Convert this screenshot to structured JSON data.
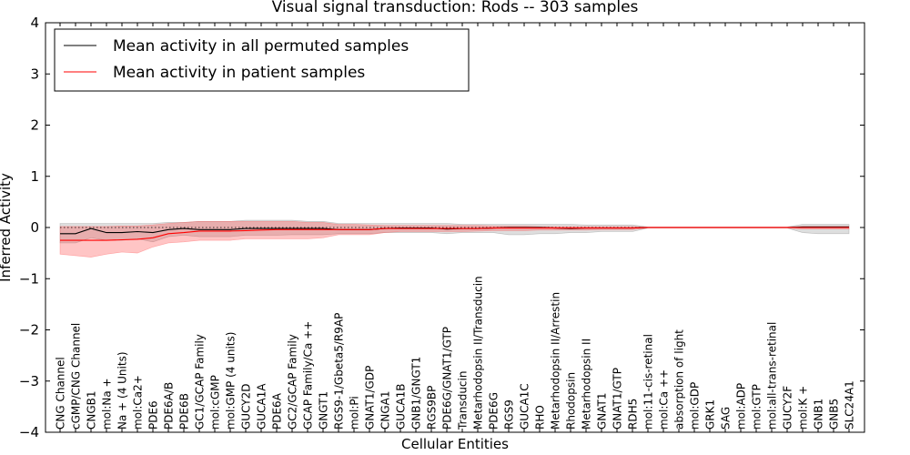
{
  "chart_data": {
    "type": "line",
    "title": "Visual signal transduction: Rods -- 303 samples",
    "xlabel": "Cellular Entities",
    "ylabel": "Inferred Activity",
    "ylim": [
      -4,
      4
    ],
    "yticks": [
      "4",
      "3",
      "2",
      "1",
      "0",
      "−1",
      "−2",
      "−3",
      "−4"
    ],
    "ytick_values": [
      4,
      3,
      2,
      1,
      0,
      -1,
      -2,
      -3,
      -4
    ],
    "legend_position": "top-left",
    "categories": [
      "CNG Channel",
      "cGMP/CNG Channel",
      "CNGB1",
      "mol:Na +",
      "Na + (4 Units)",
      "mol:Ca2+",
      "PDE6",
      "PDE6A/B",
      "PDE6B",
      "GC1/GCAP Family",
      "mol:cGMP",
      "mol:GMP (4 units)",
      "GUCY2D",
      "GUCA1A",
      "PDE6A",
      "GC2/GCAP Family",
      "GCAP Family/Ca ++",
      "GNGT1",
      "RGS9-1/Gbeta5/R9AP",
      "mol:Pi",
      "GNAT1/GDP",
      "CNGA1",
      "GUCA1B",
      "GNB1/GNGT1",
      "RGS9BP",
      "PDE6G/GNAT1/GTP",
      "Transducin",
      "Metarhodopsin II/Transducin",
      "PDE6G",
      "RGS9",
      "GUCA1C",
      "RHO",
      "Metarhodopsin II/Arrestin",
      "Rhodopsin",
      "Metarhodopsin II",
      "GNAT1",
      "GNAT1/GTP",
      "RDH5",
      "mol:11-cis-retinal",
      "mol:Ca ++",
      "absorption of light",
      "mol:GDP",
      "GRK1",
      "SAG",
      "mol:ADP",
      "mol:GTP",
      "mol:all-trans-retinal",
      "GUCY2F",
      "mol:K +",
      "GNB1",
      "GNB5",
      "SLC24A1"
    ],
    "series": [
      {
        "name": "Mean activity in all permuted samples",
        "color": "#000000",
        "values": [
          -0.12,
          -0.12,
          -0.02,
          -0.1,
          -0.1,
          -0.08,
          -0.1,
          -0.04,
          -0.02,
          -0.04,
          -0.04,
          -0.04,
          -0.02,
          -0.02,
          -0.02,
          -0.02,
          -0.02,
          -0.02,
          -0.04,
          -0.04,
          -0.04,
          -0.02,
          -0.01,
          -0.01,
          -0.01,
          -0.03,
          -0.02,
          -0.02,
          -0.01,
          0,
          0,
          0,
          -0.01,
          -0.02,
          -0.01,
          -0.01,
          -0.01,
          -0.01,
          0,
          0,
          0,
          0,
          0,
          0,
          0,
          0,
          0,
          0,
          0.01,
          0.01,
          0.01,
          0.01
        ],
        "upper": [
          0.08,
          0.08,
          0.08,
          0.08,
          0.08,
          0.08,
          0.08,
          0.1,
          0.1,
          0.12,
          0.12,
          0.12,
          0.14,
          0.14,
          0.14,
          0.14,
          0.12,
          0.12,
          0.08,
          0.08,
          0.08,
          0.08,
          0.08,
          0.08,
          0.08,
          0.08,
          0.06,
          0.06,
          0.06,
          0.06,
          0.06,
          0.06,
          0.06,
          0.06,
          0.05,
          0.05,
          0.05,
          0.05,
          0.01,
          0.01,
          0.01,
          0.01,
          0.01,
          0.01,
          0.01,
          0.01,
          0.01,
          0.01,
          0.06,
          0.06,
          0.06,
          0.06
        ],
        "lower": [
          -0.3,
          -0.3,
          -0.2,
          -0.25,
          -0.25,
          -0.22,
          -0.28,
          -0.18,
          -0.15,
          -0.18,
          -0.18,
          -0.18,
          -0.15,
          -0.15,
          -0.15,
          -0.14,
          -0.14,
          -0.14,
          -0.12,
          -0.12,
          -0.12,
          -0.1,
          -0.1,
          -0.1,
          -0.1,
          -0.12,
          -0.1,
          -0.1,
          -0.1,
          -0.14,
          -0.14,
          -0.12,
          -0.12,
          -0.1,
          -0.1,
          -0.08,
          -0.08,
          -0.08,
          -0.01,
          -0.01,
          -0.01,
          -0.01,
          -0.01,
          -0.01,
          -0.01,
          -0.01,
          -0.01,
          -0.01,
          -0.1,
          -0.12,
          -0.12,
          -0.12
        ]
      },
      {
        "name": "Mean activity in patient samples",
        "color": "#ff0000",
        "values": [
          -0.25,
          -0.25,
          -0.25,
          -0.25,
          -0.24,
          -0.23,
          -0.2,
          -0.12,
          -0.1,
          -0.07,
          -0.07,
          -0.07,
          -0.06,
          -0.05,
          -0.04,
          -0.04,
          -0.04,
          -0.04,
          -0.04,
          -0.04,
          -0.04,
          -0.02,
          -0.02,
          -0.02,
          -0.02,
          -0.02,
          -0.02,
          -0.02,
          -0.01,
          -0.01,
          -0.01,
          -0.01,
          -0.01,
          -0.01,
          -0.01,
          -0.01,
          -0.01,
          -0.01,
          0,
          0,
          0,
          0,
          0,
          0,
          0,
          0,
          0,
          0,
          0,
          0,
          0,
          0
        ],
        "upper": [
          0.02,
          0.02,
          0.02,
          0.02,
          0.03,
          0.03,
          0.05,
          0.08,
          0.1,
          0.12,
          0.12,
          0.12,
          0.12,
          0.12,
          0.12,
          0.12,
          0.1,
          0.1,
          0.06,
          0.06,
          0.05,
          0.04,
          0.04,
          0.04,
          0.04,
          0.04,
          0.04,
          0.04,
          0.03,
          0.03,
          0.03,
          0.02,
          0.02,
          0.02,
          0.02,
          0.02,
          0.02,
          0.02,
          0.01,
          0.01,
          0.01,
          0.01,
          0.01,
          0.01,
          0.01,
          0.01,
          0.01,
          0.01,
          0.02,
          0.02,
          0.02,
          0.02
        ],
        "lower": [
          -0.52,
          -0.55,
          -0.58,
          -0.52,
          -0.48,
          -0.5,
          -0.38,
          -0.3,
          -0.28,
          -0.25,
          -0.25,
          -0.25,
          -0.22,
          -0.22,
          -0.22,
          -0.22,
          -0.22,
          -0.2,
          -0.14,
          -0.14,
          -0.14,
          -0.1,
          -0.08,
          -0.08,
          -0.08,
          -0.08,
          -0.08,
          -0.07,
          -0.06,
          -0.06,
          -0.06,
          -0.05,
          -0.05,
          -0.05,
          -0.05,
          -0.04,
          -0.04,
          -0.04,
          -0.01,
          -0.01,
          -0.01,
          -0.01,
          -0.01,
          -0.01,
          -0.01,
          -0.01,
          -0.01,
          -0.01,
          -0.03,
          -0.03,
          -0.03,
          -0.03
        ]
      }
    ],
    "reference_line": {
      "name": "zero-baseline",
      "value": 0,
      "style": "dotted"
    }
  }
}
